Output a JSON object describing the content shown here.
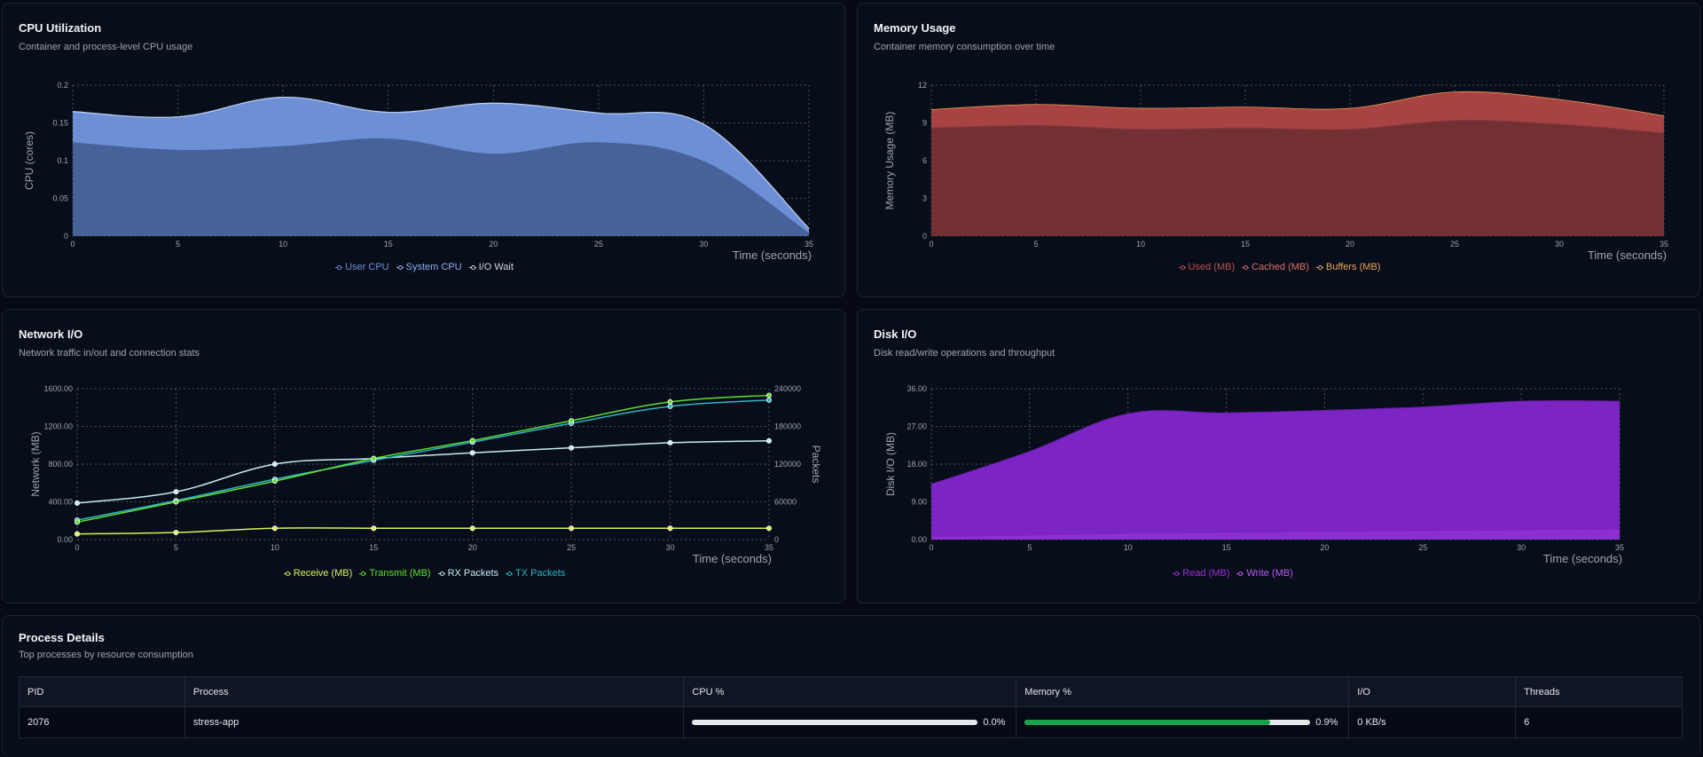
{
  "colors": {
    "user_cpu": "#6d8fd6",
    "system_cpu": "#8fb0f0",
    "io_wait": "#d1d5db",
    "used": "#7a2f33",
    "cached": "#b04444",
    "buffers": "#e8a65a",
    "receive": "#d9f05a",
    "transmit": "#5ee02f",
    "rx_packets": "#c7ecf2",
    "tx_packets": "#2fb3c2",
    "read": "#9b2fd6",
    "write": "#b65cf0",
    "cpu_bar": "#e5e7eb",
    "mem_bar": "#16a34a"
  },
  "cpu": {
    "title": "CPU Utilization",
    "subtitle": "Container and process-level CPU usage",
    "legend": [
      "User CPU",
      "System CPU",
      "I/O Wait"
    ],
    "chart_data": {
      "type": "area",
      "xlabel": "Time (seconds)",
      "ylabel": "CPU (cores)",
      "xlim": [
        0,
        35
      ],
      "ylim": [
        0,
        0.2
      ],
      "xticks": [
        "0",
        "5",
        "10",
        "15",
        "20",
        "25",
        "30",
        "35"
      ],
      "yticks": [
        "0",
        "0.05",
        "0.1",
        "0.15",
        "0.2"
      ],
      "x": [
        0,
        5,
        10,
        15,
        20,
        25,
        30,
        35
      ],
      "series": [
        {
          "name": "User CPU",
          "values": [
            0.125,
            0.115,
            0.12,
            0.13,
            0.11,
            0.125,
            0.1,
            0.005
          ]
        },
        {
          "name": "System CPU",
          "values": [
            0.04,
            0.043,
            0.064,
            0.034,
            0.066,
            0.038,
            0.048,
            0.005
          ]
        },
        {
          "name": "I/O Wait",
          "values": [
            0,
            0,
            0,
            0,
            0,
            0,
            0,
            0
          ]
        }
      ],
      "stacked": true,
      "grid": true,
      "legend_position": "bottom"
    }
  },
  "memory": {
    "title": "Memory Usage",
    "subtitle": "Container memory consumption over time",
    "legend": [
      "Used (MB)",
      "Cached (MB)",
      "Buffers (MB)"
    ],
    "chart_data": {
      "type": "area",
      "xlabel": "Time (seconds)",
      "ylabel": "Memory Usage (MB)",
      "xlim": [
        0,
        35
      ],
      "ylim": [
        0,
        12
      ],
      "xticks": [
        "0",
        "5",
        "10",
        "15",
        "20",
        "25",
        "30",
        "35"
      ],
      "yticks": [
        "0",
        "3",
        "6",
        "9",
        "12"
      ],
      "x": [
        0,
        5,
        10,
        15,
        20,
        25,
        30,
        35
      ],
      "series": [
        {
          "name": "Used (MB)",
          "values": [
            8.6,
            8.8,
            8.5,
            8.6,
            8.5,
            9.2,
            8.9,
            8.2
          ]
        },
        {
          "name": "Cached (MB)",
          "values": [
            1.4,
            1.6,
            1.6,
            1.6,
            1.6,
            2.2,
            1.9,
            1.3
          ]
        },
        {
          "name": "Buffers (MB)",
          "values": [
            0.05,
            0.05,
            0.05,
            0.05,
            0.05,
            0.05,
            0.05,
            0.05
          ]
        }
      ],
      "stacked": true,
      "grid": true,
      "legend_position": "bottom"
    }
  },
  "network": {
    "title": "Network I/O",
    "subtitle": "Network traffic in/out and connection stats",
    "legend": [
      "Receive (MB)",
      "Transmit (MB)",
      "RX Packets",
      "TX Packets"
    ],
    "chart_data": {
      "type": "line",
      "xlabel": "Time (seconds)",
      "ylabel": "Network (MB)",
      "y2label": "Packets",
      "xlim": [
        0,
        35
      ],
      "ylim": [
        0,
        1600
      ],
      "y2lim": [
        0,
        240000
      ],
      "xticks": [
        "0",
        "5",
        "10",
        "15",
        "20",
        "25",
        "30",
        "35"
      ],
      "yticks": [
        "0.00",
        "400.00",
        "800.00",
        "1200.00",
        "1600.00"
      ],
      "y2ticks": [
        "0",
        "60000",
        "120000",
        "180000",
        "240000"
      ],
      "x": [
        0,
        5,
        10,
        15,
        20,
        25,
        30,
        35
      ],
      "series": [
        {
          "name": "Receive (MB)",
          "axis": "left",
          "values": [
            60,
            75,
            120,
            120,
            120,
            120,
            120,
            120
          ]
        },
        {
          "name": "Transmit (MB)",
          "axis": "left",
          "values": [
            185,
            400,
            620,
            860,
            1050,
            1260,
            1460,
            1530
          ]
        },
        {
          "name": "RX Packets",
          "axis": "right",
          "values": [
            58000,
            76000,
            120000,
            129000,
            138000,
            146000,
            154000,
            157000
          ]
        },
        {
          "name": "TX Packets",
          "axis": "right",
          "values": [
            31000,
            62000,
            96000,
            126000,
            155000,
            185000,
            212000,
            222000
          ]
        }
      ],
      "grid": true,
      "legend_position": "bottom"
    }
  },
  "disk": {
    "title": "Disk I/O",
    "subtitle": "Disk read/write operations and throughput",
    "legend": [
      "Read (MB)",
      "Write (MB)"
    ],
    "chart_data": {
      "type": "area",
      "xlabel": "Time (seconds)",
      "ylabel": "Disk I/O (MB)",
      "xlim": [
        0,
        35
      ],
      "ylim": [
        0,
        36
      ],
      "xticks": [
        "0",
        "5",
        "10",
        "15",
        "20",
        "25",
        "30",
        "35"
      ],
      "yticks": [
        "0.00",
        "9.00",
        "18.00",
        "27.00",
        "36.00"
      ],
      "x": [
        0,
        5,
        10,
        15,
        20,
        25,
        30,
        35
      ],
      "series": [
        {
          "name": "Read (MB)",
          "values": [
            0.4,
            0.8,
            1.2,
            1.4,
            1.6,
            1.8,
            2.0,
            2.2
          ]
        },
        {
          "name": "Write (MB)",
          "values": [
            12.8,
            20.2,
            28.8,
            28.8,
            29.2,
            29.8,
            31.0,
            30.8
          ]
        }
      ],
      "stacked": true,
      "grid": true,
      "legend_position": "bottom"
    }
  },
  "process": {
    "title": "Process Details",
    "subtitle": "Top processes by resource consumption",
    "columns": [
      "PID",
      "Process",
      "CPU %",
      "Memory %",
      "I/O",
      "Threads"
    ],
    "rows": [
      {
        "pid": "2076",
        "process": "stress-app",
        "cpu": "0.0%",
        "cpu_fraction": 0.0,
        "memory": "0.9%",
        "memory_fraction": 0.86,
        "io": "0 KB/s",
        "threads": "6"
      }
    ]
  }
}
